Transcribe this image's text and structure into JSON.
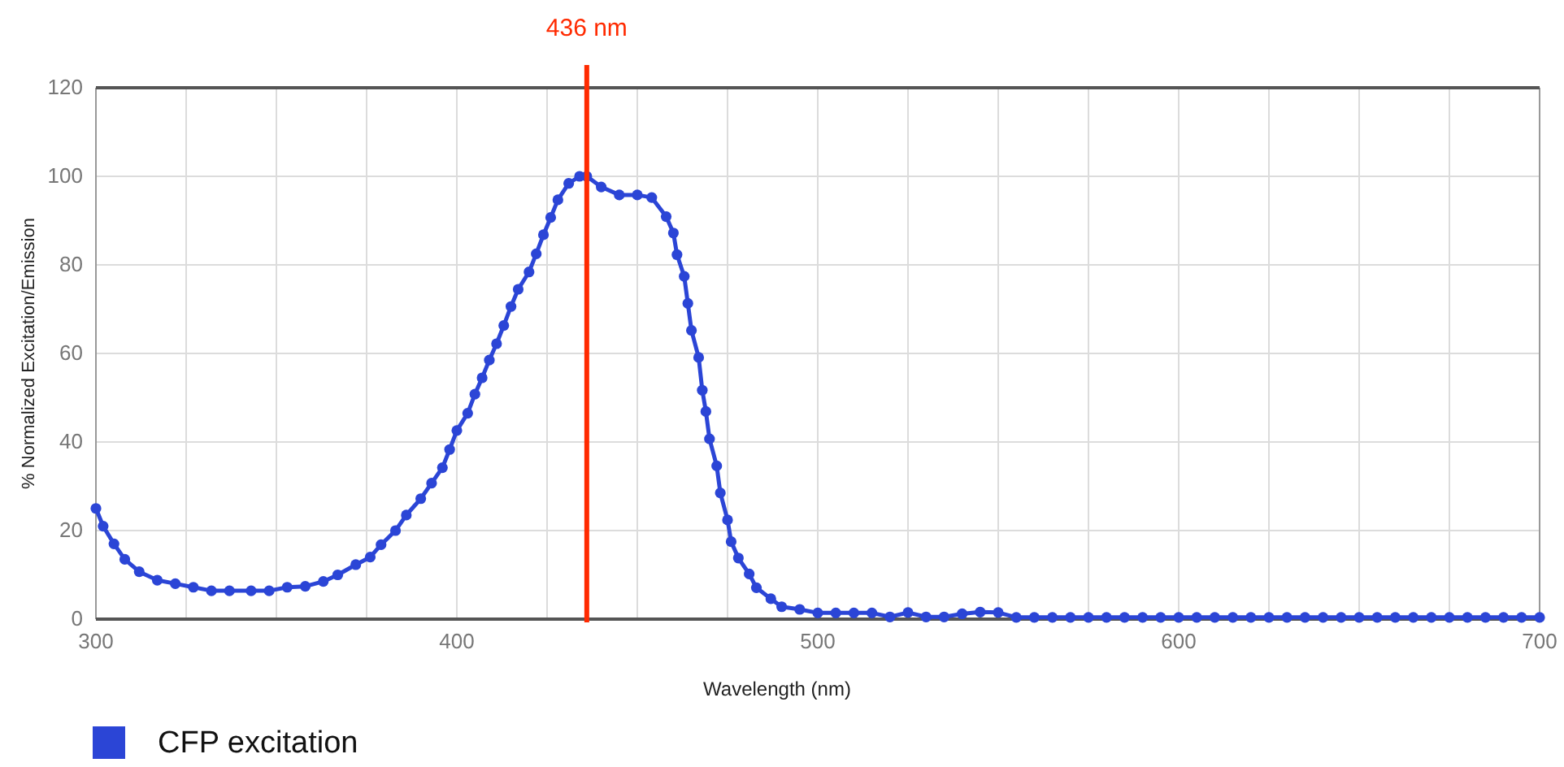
{
  "chart_data": {
    "type": "line",
    "xlabel": "Wavelength (nm)",
    "ylabel": "% Normalized Excitation/Emission",
    "x": [
      300,
      302,
      305,
      308,
      312,
      317,
      322,
      327,
      332,
      337,
      343,
      348,
      353,
      358,
      363,
      367,
      372,
      376,
      379,
      383,
      386,
      390,
      393,
      396,
      398,
      400,
      403,
      405,
      407,
      409,
      411,
      413,
      415,
      417,
      420,
      422,
      424,
      426,
      428,
      431,
      434,
      436,
      440,
      445,
      450,
      454,
      458,
      460,
      461,
      463,
      464,
      465,
      467,
      468,
      469,
      470,
      472,
      473,
      475,
      476,
      478,
      481,
      483,
      487,
      490,
      495,
      500,
      505,
      510,
      515,
      520,
      525,
      530,
      535,
      540,
      545,
      550,
      555,
      560,
      565,
      570,
      575,
      580,
      585,
      590,
      595,
      600,
      605,
      610,
      615,
      620,
      625,
      630,
      635,
      640,
      645,
      650,
      655,
      660,
      665,
      670,
      675,
      680,
      685,
      690,
      695,
      700
    ],
    "series": [
      {
        "name": "CFP excitation",
        "color": "#2b45d6",
        "values": [
          25,
          21,
          17,
          13.5,
          10.7,
          8.8,
          8,
          7.2,
          6.4,
          6.4,
          6.4,
          6.4,
          7.2,
          7.4,
          8.5,
          10,
          12.3,
          14,
          16.8,
          20,
          23.5,
          27.2,
          30.7,
          34.2,
          38.3,
          42.6,
          46.5,
          50.8,
          54.5,
          58.5,
          62.2,
          66.3,
          70.6,
          74.5,
          78.4,
          82.5,
          86.8,
          90.7,
          94.7,
          98.4,
          100,
          100,
          97.6,
          95.8,
          95.8,
          95.2,
          90.9,
          87.2,
          82.3,
          77.4,
          71.3,
          65.2,
          59.1,
          51.7,
          46.9,
          40.7,
          34.6,
          28.5,
          22.4,
          17.5,
          13.8,
          10.2,
          7.1,
          4.6,
          2.8,
          2.2,
          1.4,
          1.4,
          1.4,
          1.4,
          0.5,
          1.5,
          0.5,
          0.5,
          1.2,
          1.6,
          1.5,
          0.4,
          0.4,
          0.4,
          0.4,
          0.4,
          0.4,
          0.4,
          0.4,
          0.4,
          0.4,
          0.4,
          0.4,
          0.4,
          0.4,
          0.4,
          0.4,
          0.4,
          0.4,
          0.4,
          0.4,
          0.4,
          0.4,
          0.4,
          0.4,
          0.4,
          0.4,
          0.4,
          0.4,
          0.4,
          0.4
        ]
      }
    ],
    "xlim": [
      300,
      700
    ],
    "xticks": [
      300,
      {
        "value": 325,
        "label": null
      },
      {
        "value": 350,
        "label": null
      },
      {
        "value": 375,
        "label": null
      },
      400,
      {
        "value": 425,
        "label": null
      },
      {
        "value": 450,
        "label": null
      },
      {
        "value": 475,
        "label": null
      },
      500,
      {
        "value": 525,
        "label": null
      },
      {
        "value": 550,
        "label": null
      },
      {
        "value": 575,
        "label": null
      },
      600,
      {
        "value": 625,
        "label": null
      },
      {
        "value": 650,
        "label": null
      },
      {
        "value": 675,
        "label": null
      },
      700
    ],
    "ylim": [
      0,
      120
    ],
    "yticks": [
      0,
      20,
      40,
      60,
      80,
      100,
      120
    ],
    "grid": true,
    "marker": "circle",
    "line_style": "solid",
    "legend": "bottom left",
    "ref_lines": [
      {
        "axis": "x",
        "value": 436,
        "label": "436 nm",
        "color": "#ff2a00"
      }
    ]
  }
}
